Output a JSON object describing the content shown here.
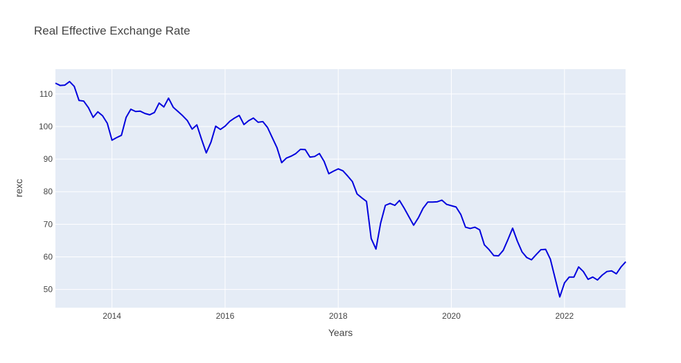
{
  "chart_data": {
    "type": "line",
    "title": "Real Effective Exchange Rate",
    "xlabel": "Years",
    "ylabel": "rexc",
    "xlim": [
      2013.0,
      2023.08
    ],
    "ylim": [
      44.4,
      117.6
    ],
    "x_ticks": [
      2014,
      2016,
      2018,
      2020,
      2022
    ],
    "x_tick_labels": [
      "2014",
      "2016",
      "2018",
      "2020",
      "2022"
    ],
    "y_ticks": [
      50,
      60,
      70,
      80,
      90,
      100,
      110
    ],
    "y_tick_labels": [
      "50",
      "60",
      "70",
      "80",
      "90",
      "100",
      "110"
    ],
    "grid": true,
    "legend": "none",
    "colors": {
      "line": "#0000dd",
      "plot_bg": "#e5ecf6",
      "grid": "#ffffff"
    },
    "series": [
      {
        "x": [
          2013.0,
          2013.083,
          2013.167,
          2013.25,
          2013.333,
          2013.417,
          2013.5,
          2013.583,
          2013.667,
          2013.75,
          2013.833,
          2013.917,
          2014.0,
          2014.083,
          2014.167,
          2014.25,
          2014.333,
          2014.417,
          2014.5,
          2014.583,
          2014.667,
          2014.75,
          2014.833,
          2014.917,
          2015.0,
          2015.083,
          2015.167,
          2015.25,
          2015.333,
          2015.417,
          2015.5,
          2015.583,
          2015.667,
          2015.75,
          2015.833,
          2015.917,
          2016.0,
          2016.083,
          2016.167,
          2016.25,
          2016.333,
          2016.417,
          2016.5,
          2016.583,
          2016.667,
          2016.75,
          2016.833,
          2016.917,
          2017.0,
          2017.083,
          2017.167,
          2017.25,
          2017.333,
          2017.417,
          2017.5,
          2017.583,
          2017.667,
          2017.75,
          2017.833,
          2017.917,
          2018.0,
          2018.083,
          2018.167,
          2018.25,
          2018.333,
          2018.417,
          2018.5,
          2018.583,
          2018.667,
          2018.75,
          2018.833,
          2018.917,
          2019.0,
          2019.083,
          2019.167,
          2019.25,
          2019.333,
          2019.417,
          2019.5,
          2019.583,
          2019.667,
          2019.75,
          2019.833,
          2019.917,
          2020.0,
          2020.083,
          2020.167,
          2020.25,
          2020.333,
          2020.417,
          2020.5,
          2020.583,
          2020.667,
          2020.75,
          2020.833,
          2020.917,
          2021.0,
          2021.083,
          2021.167,
          2021.25,
          2021.333,
          2021.417,
          2021.5,
          2021.583,
          2021.667,
          2021.75,
          2021.833,
          2021.917,
          2022.0,
          2022.083,
          2022.167,
          2022.25,
          2022.333,
          2022.417,
          2022.5,
          2022.583,
          2022.667,
          2022.75,
          2022.833,
          2022.917,
          2023.0,
          2023.083
        ],
        "y": [
          113.3,
          112.6,
          112.7,
          113.8,
          112.3,
          108.0,
          107.8,
          105.8,
          102.8,
          104.5,
          103.3,
          101.0,
          95.8,
          96.6,
          97.3,
          102.8,
          105.3,
          104.6,
          104.7,
          104.0,
          103.6,
          104.3,
          107.2,
          106.0,
          108.7,
          105.9,
          104.6,
          103.3,
          101.8,
          99.2,
          100.5,
          96.1,
          91.9,
          95.2,
          100.1,
          99.1,
          100.1,
          101.6,
          102.6,
          103.4,
          100.6,
          101.8,
          102.6,
          101.3,
          101.5,
          99.7,
          96.6,
          93.5,
          88.9,
          90.3,
          90.9,
          91.7,
          93.0,
          92.9,
          90.6,
          90.8,
          91.7,
          89.3,
          85.5,
          86.3,
          87.0,
          86.4,
          84.8,
          83.1,
          79.3,
          78.1,
          77.0,
          65.6,
          62.4,
          70.4,
          75.8,
          76.4,
          75.8,
          77.3,
          74.9,
          72.3,
          69.7,
          72.0,
          74.9,
          76.8,
          76.8,
          76.9,
          77.4,
          76.1,
          75.7,
          75.3,
          73.0,
          69.1,
          68.7,
          69.1,
          68.3,
          63.7,
          62.2,
          60.4,
          60.3,
          62.0,
          65.3,
          68.8,
          64.8,
          61.5,
          59.8,
          59.1,
          60.7,
          62.2,
          62.3,
          59.3,
          53.5,
          47.7,
          52.0,
          53.8,
          53.8,
          56.9,
          55.5,
          53.1,
          53.8,
          52.9,
          54.4,
          55.5,
          55.7,
          54.8,
          56.9,
          58.5
        ]
      }
    ]
  }
}
